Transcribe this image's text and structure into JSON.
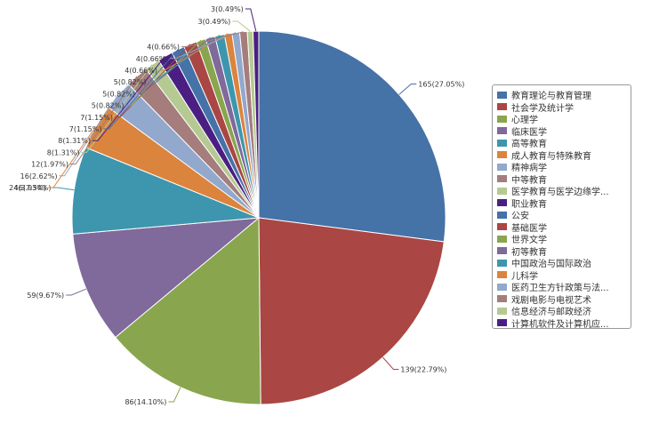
{
  "chart_data": {
    "type": "pie",
    "title": "",
    "labels": [
      "教育理论与教育管理",
      "社会学及统计学",
      "心理学",
      "临床医学",
      "高等教育",
      "成人教育与特殊教育",
      "精神病学",
      "中等教育",
      "医学教育与医学边缘学...",
      "职业教育",
      "公安",
      "基础医学",
      "世界文学",
      "初等教育",
      "中国政治与国际政治",
      "儿科学",
      "医药卫生方针政策与法...",
      "戏剧电影与电视艺术",
      "信息经济与邮政经济",
      "计算机软件及计算机应..."
    ],
    "values": [
      165,
      139,
      86,
      59,
      46,
      24,
      16,
      12,
      8,
      8,
      7,
      7,
      5,
      5,
      5,
      4,
      4,
      4,
      3,
      3
    ],
    "data_labels": [
      "165(27.05%)",
      "139(22.79%)",
      "86(14.10%)",
      "59(9.67%)",
      "46(7.54%)",
      "24(3.93%)",
      "16(2.62%)",
      "12(1.97%)",
      "8(1.31%)",
      "8(1.31%)",
      "7(1.15%)",
      "7(1.15%)",
      "5(0.82%)",
      "5(0.82%)",
      "5(0.82%)",
      "4(0.66%)",
      "4(0.66%)",
      "4(0.66%)",
      "3(0.49%)",
      "3(0.49%)"
    ],
    "colors": [
      "#4572A7",
      "#AA4643",
      "#89A54E",
      "#80699B",
      "#3D96AE",
      "#DB843D",
      "#92A8CD",
      "#A47D7C",
      "#B5CA92",
      "#4B1F82",
      "#4572A7",
      "#AA4643",
      "#89A54E",
      "#80699B",
      "#3D96AE",
      "#DB843D",
      "#92A8CD",
      "#A47D7C",
      "#B5CA92",
      "#4B1F82"
    ],
    "legend_position": "right"
  }
}
